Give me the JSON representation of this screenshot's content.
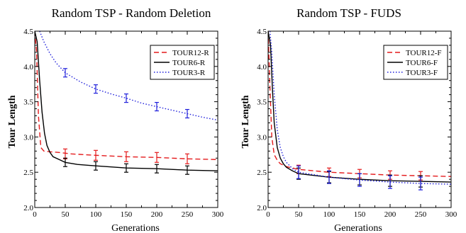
{
  "chart_data": [
    {
      "type": "line",
      "title": "Random TSP - Random Deletion",
      "xlabel": "Generations",
      "ylabel": "Tour Length",
      "xlim": [
        0,
        300
      ],
      "ylim": [
        2.0,
        4.5
      ],
      "xticks": [
        0,
        50,
        100,
        150,
        200,
        250,
        300
      ],
      "yticks": [
        2.0,
        2.5,
        3.0,
        3.5,
        4.0,
        4.5
      ],
      "xtick_labels": [
        "0",
        "50",
        "100",
        "150",
        "200",
        "250",
        "300"
      ],
      "ytick_labels": [
        "2.0",
        "2.5",
        "3.0",
        "3.5",
        "4.0",
        "4.5"
      ],
      "grid": false,
      "legend": "top-right",
      "series": [
        {
          "name": "TOUR12-R",
          "color": "#e41a1c",
          "dash": "dashed",
          "x": [
            0,
            3,
            6,
            10,
            15,
            25,
            40,
            60,
            100,
            150,
            200,
            250,
            300
          ],
          "y": [
            4.5,
            4.2,
            3.3,
            2.85,
            2.8,
            2.79,
            2.78,
            2.76,
            2.74,
            2.72,
            2.71,
            2.69,
            2.68
          ],
          "error_x": [
            50,
            100,
            150,
            200,
            250
          ],
          "error_y": [
            2.76,
            2.74,
            2.72,
            2.71,
            2.69
          ],
          "error_half": [
            0.07,
            0.07,
            0.07,
            0.07,
            0.07
          ]
        },
        {
          "name": "TOUR6-R",
          "color": "#000000",
          "dash": "solid",
          "x": [
            0,
            4,
            8,
            12,
            16,
            20,
            25,
            30,
            40,
            50,
            70,
            100,
            150,
            200,
            250,
            300
          ],
          "y": [
            4.5,
            4.35,
            3.8,
            3.35,
            3.05,
            2.88,
            2.78,
            2.72,
            2.68,
            2.64,
            2.61,
            2.59,
            2.56,
            2.55,
            2.53,
            2.52
          ],
          "error_x": [
            50,
            100,
            150,
            200,
            250
          ],
          "error_y": [
            2.64,
            2.59,
            2.56,
            2.55,
            2.53
          ],
          "error_half": [
            0.06,
            0.06,
            0.06,
            0.06,
            0.06
          ]
        },
        {
          "name": "TOUR3-R",
          "color": "#1f1fdb",
          "dash": "dotted",
          "x": [
            8,
            15,
            25,
            35,
            50,
            75,
            100,
            125,
            150,
            175,
            200,
            225,
            250,
            275,
            300
          ],
          "y": [
            4.5,
            4.35,
            4.18,
            4.05,
            3.91,
            3.78,
            3.68,
            3.61,
            3.55,
            3.48,
            3.43,
            3.38,
            3.33,
            3.28,
            3.24
          ],
          "error_x": [
            50,
            100,
            150,
            200,
            250
          ],
          "error_y": [
            3.91,
            3.68,
            3.55,
            3.43,
            3.33
          ],
          "error_half": [
            0.06,
            0.06,
            0.06,
            0.06,
            0.06
          ]
        }
      ]
    },
    {
      "type": "line",
      "title": "Random TSP - FUDS",
      "xlabel": "Generations",
      "ylabel": "Tour Length",
      "xlim": [
        0,
        300
      ],
      "ylim": [
        2.0,
        4.5
      ],
      "xticks": [
        0,
        50,
        100,
        150,
        200,
        250,
        300
      ],
      "yticks": [
        2.0,
        2.5,
        3.0,
        3.5,
        4.0,
        4.5
      ],
      "xtick_labels": [
        "0",
        "50",
        "100",
        "150",
        "200",
        "250",
        "300"
      ],
      "ytick_labels": [
        "2.0",
        "2.5",
        "3.0",
        "3.5",
        "4.0",
        "4.5"
      ],
      "grid": false,
      "legend": "top-right",
      "series": [
        {
          "name": "TOUR12-F",
          "color": "#e41a1c",
          "dash": "dashed",
          "x": [
            0,
            3,
            6,
            10,
            15,
            20,
            30,
            50,
            100,
            150,
            200,
            250,
            300
          ],
          "y": [
            4.5,
            3.7,
            3.0,
            2.75,
            2.67,
            2.62,
            2.58,
            2.54,
            2.5,
            2.48,
            2.46,
            2.45,
            2.44
          ],
          "error_x": [
            50,
            100,
            150,
            200,
            250
          ],
          "error_y": [
            2.54,
            2.5,
            2.48,
            2.46,
            2.45
          ],
          "error_half": [
            0.06,
            0.06,
            0.06,
            0.06,
            0.06
          ]
        },
        {
          "name": "TOUR6-F",
          "color": "#000000",
          "dash": "solid",
          "x": [
            0,
            4,
            7,
            10,
            15,
            20,
            25,
            30,
            40,
            50,
            100,
            150,
            200,
            250,
            300
          ],
          "y": [
            4.5,
            4.3,
            3.7,
            3.2,
            2.85,
            2.7,
            2.62,
            2.57,
            2.52,
            2.48,
            2.43,
            2.4,
            2.38,
            2.37,
            2.36
          ],
          "error_x": [
            50,
            100,
            150,
            200,
            250
          ],
          "error_y": [
            2.48,
            2.43,
            2.4,
            2.38,
            2.37
          ],
          "error_half": [
            0.08,
            0.08,
            0.08,
            0.08,
            0.08
          ]
        },
        {
          "name": "TOUR3-F",
          "color": "#1f1fdb",
          "dash": "dotted",
          "x": [
            3,
            6,
            10,
            15,
            20,
            25,
            30,
            40,
            50,
            100,
            150,
            200,
            250,
            300
          ],
          "y": [
            4.5,
            4.2,
            3.6,
            3.1,
            2.85,
            2.72,
            2.64,
            2.55,
            2.5,
            2.43,
            2.39,
            2.36,
            2.34,
            2.33
          ],
          "error_x": [
            50,
            100,
            150,
            200,
            250
          ],
          "error_y": [
            2.5,
            2.43,
            2.39,
            2.36,
            2.34
          ],
          "error_half": [
            0.09,
            0.09,
            0.09,
            0.09,
            0.09
          ]
        }
      ]
    }
  ]
}
